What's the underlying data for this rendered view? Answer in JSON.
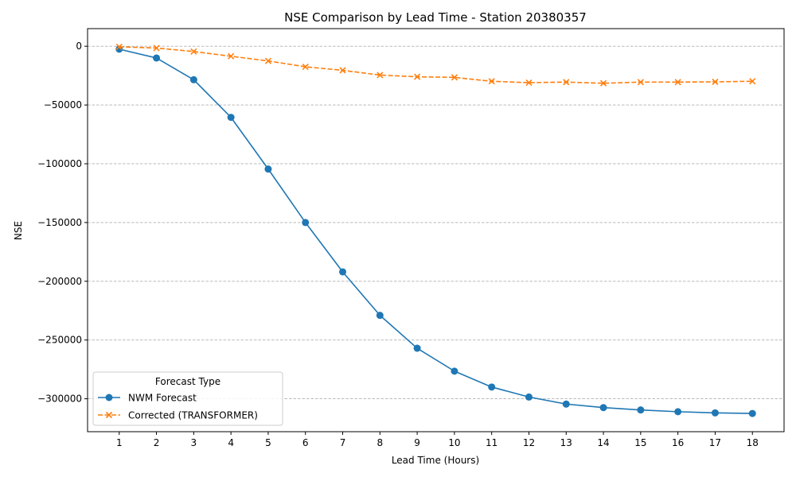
{
  "chart_data": {
    "type": "line",
    "title": "NSE Comparison by Lead Time - Station 20380357",
    "xlabel": "Lead Time (Hours)",
    "ylabel": "NSE",
    "x": [
      1,
      2,
      3,
      4,
      5,
      6,
      7,
      8,
      9,
      10,
      11,
      12,
      13,
      14,
      15,
      16,
      17,
      18
    ],
    "xlim": [
      0.15,
      18.85
    ],
    "ylim": [
      -328000,
      15000
    ],
    "yticks": [
      0,
      -50000,
      -100000,
      -150000,
      -200000,
      -250000,
      -300000
    ],
    "ytick_labels": [
      "0",
      "−50000",
      "−100000",
      "−150000",
      "−200000",
      "−250000",
      "−300000"
    ],
    "grid": "y-dashed",
    "legend": {
      "title": "Forecast Type",
      "placement": "lower-left"
    },
    "series": [
      {
        "name": "NWM Forecast",
        "color": "#1f77b4",
        "marker": "circle",
        "linestyle": "solid",
        "values": [
          -2500,
          -10000,
          -28500,
          -60500,
          -104500,
          -150000,
          -192000,
          -229000,
          -257000,
          -276500,
          -290000,
          -298500,
          -304500,
          -307500,
          -309500,
          -311000,
          -312000,
          -312500
        ]
      },
      {
        "name": "Corrected (TRANSFORMER)",
        "color": "#ff7f0e",
        "marker": "x",
        "linestyle": "dashed",
        "values": [
          -500,
          -1500,
          -4500,
          -8500,
          -12500,
          -17500,
          -20500,
          -24500,
          -26000,
          -26500,
          -29800,
          -31000,
          -30500,
          -31500,
          -30500,
          -30500,
          -30300,
          -29800
        ]
      }
    ]
  }
}
